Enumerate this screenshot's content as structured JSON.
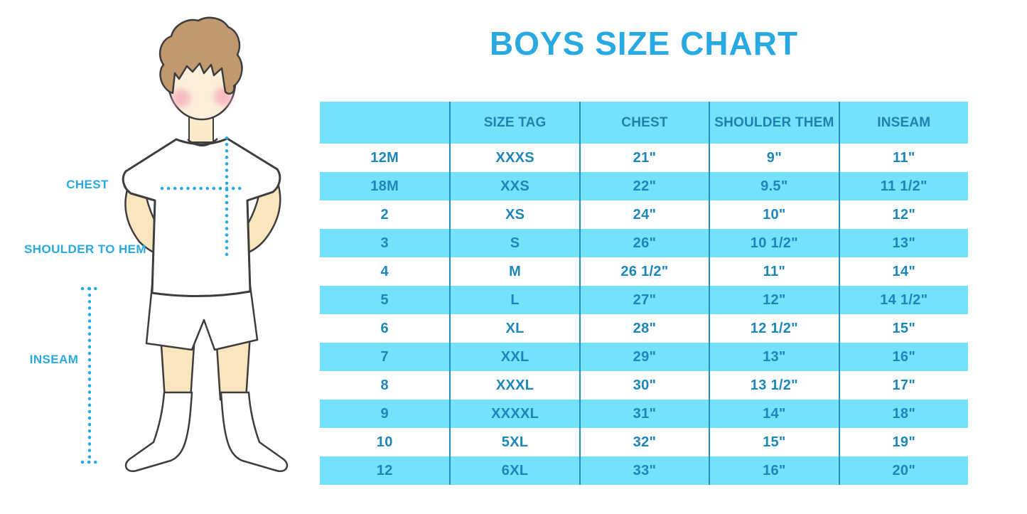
{
  "title": "BOYS SIZE CHART",
  "colors": {
    "accent_blue": "#29A9E1",
    "dotted_line_blue": "#29ABE2",
    "table_alt_row": "#74E2FB",
    "table_separator": "#1F8FC4",
    "table_text": "#1C86BA"
  },
  "figure": {
    "labels": {
      "chest": "CHEST",
      "shoulder_to_hem": "SHOULDER TO HEM",
      "inseam": "INSEAM"
    }
  },
  "chart_data": {
    "type": "table",
    "title": "BOYS SIZE CHART",
    "columns": [
      "",
      "SIZE TAG",
      "CHEST",
      "SHOULDER THEM",
      "INSEAM"
    ],
    "rows": [
      [
        "12M",
        "XXXS",
        "21\"",
        "9\"",
        "11\""
      ],
      [
        "18M",
        "XXS",
        "22\"",
        "9.5\"",
        "11 1/2\""
      ],
      [
        "2",
        "XS",
        "24\"",
        "10\"",
        "12\""
      ],
      [
        "3",
        "S",
        "26\"",
        "10 1/2\"",
        "13\""
      ],
      [
        "4",
        "M",
        "26 1/2\"",
        "11\"",
        "14\""
      ],
      [
        "5",
        "L",
        "27\"",
        "12\"",
        "14 1/2\""
      ],
      [
        "6",
        "XL",
        "28\"",
        "12 1/2\"",
        "15\""
      ],
      [
        "7",
        "XXL",
        "29\"",
        "13\"",
        "16\""
      ],
      [
        "8",
        "XXXL",
        "30\"",
        "13 1/2\"",
        "17\""
      ],
      [
        "9",
        "XXXXL",
        "31\"",
        "14\"",
        "18\""
      ],
      [
        "10",
        "5XL",
        "32\"",
        "15\"",
        "19\""
      ],
      [
        "12",
        "6XL",
        "33\"",
        "16\"",
        "20\""
      ]
    ],
    "layout": {
      "alternating_row_fill": [
        "white",
        "#74E2FB"
      ],
      "header_fill": "#74E2FB",
      "vertical_separators_only": true
    }
  }
}
